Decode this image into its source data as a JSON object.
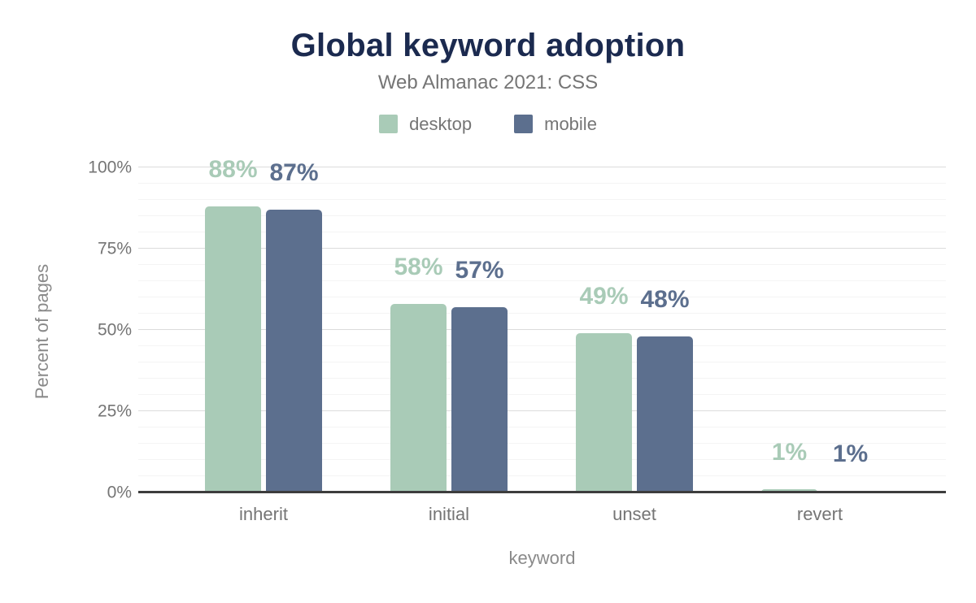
{
  "chart_data": {
    "type": "bar",
    "title": "Global keyword adoption",
    "subtitle": "Web Almanac 2021: CSS",
    "xlabel": "keyword",
    "ylabel": "Percent of pages",
    "categories": [
      "inherit",
      "initial",
      "unset",
      "revert"
    ],
    "series": [
      {
        "name": "desktop",
        "color": "#a9cbb7",
        "values": [
          88,
          58,
          49,
          1
        ],
        "labels": [
          "88%",
          "58%",
          "49%",
          "1%"
        ]
      },
      {
        "name": "mobile",
        "color": "#5c6f8e",
        "values": [
          87,
          57,
          48,
          0.5
        ],
        "labels": [
          "87%",
          "57%",
          "48%",
          "1%"
        ]
      }
    ],
    "ylim": [
      0,
      100
    ],
    "yticks": [
      {
        "label": "0%",
        "value": 0
      },
      {
        "label": "25%",
        "value": 25
      },
      {
        "label": "50%",
        "value": 50
      },
      {
        "label": "75%",
        "value": 75
      },
      {
        "label": "100%",
        "value": 100
      }
    ],
    "grid": {
      "show": true,
      "minor_step": 5,
      "major_step": 25
    },
    "legend_position": "top"
  },
  "colors": {
    "title": "#1b2a4f",
    "muted_text": "#757575",
    "axis_line": "#3d3d3d",
    "grid_minor": "#f4f4f4",
    "grid_major": "#dcdcdc",
    "background": "#ffffff"
  }
}
